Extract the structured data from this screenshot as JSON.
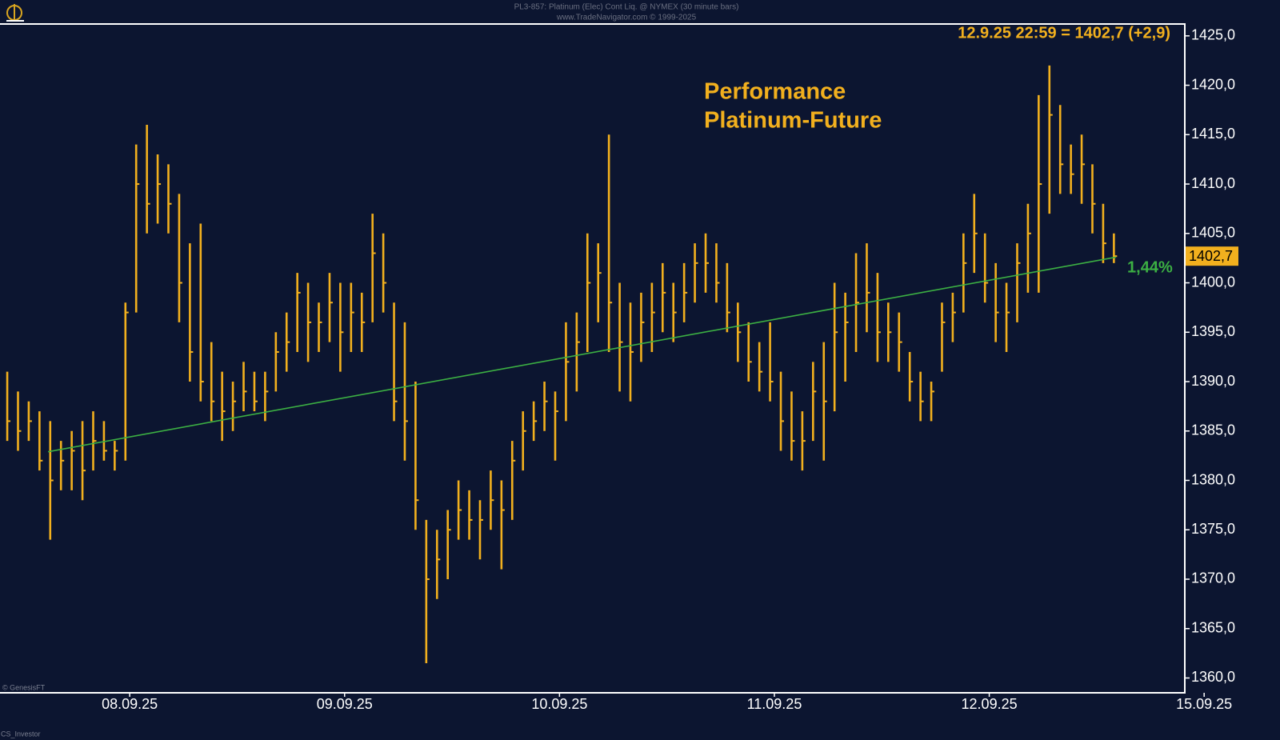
{
  "chart_data": {
    "type": "ohlc",
    "title": "PL3-857: Platinum (Elec) Cont Liq. @ NYMEX (30 minute bars)",
    "subtitle": "www.TradeNavigator.com © 1999-2025",
    "info": "12.9.25 22:59 = 1402,7 (+2,9)",
    "annotations": [
      "Performance",
      "Platinum-Future"
    ],
    "credits": [
      "© GenesisFT",
      "CS_Investor"
    ],
    "color": "#f2b01e",
    "x": [
      0.43,
      0.48,
      0.53,
      0.58,
      0.63,
      0.68,
      0.73,
      0.78,
      0.83,
      0.88,
      0.93,
      0.98,
      1.03,
      1.08,
      1.13,
      1.18,
      1.23,
      1.28,
      1.33,
      1.38,
      1.43,
      1.48,
      1.53,
      1.58,
      1.63,
      1.68,
      1.73,
      1.78,
      1.83,
      1.88,
      1.93,
      1.98,
      2.03,
      2.08,
      2.13,
      2.18,
      2.23,
      2.28,
      2.33,
      2.38,
      2.43,
      2.48,
      2.53,
      2.58,
      2.63,
      2.68,
      2.73,
      2.78,
      2.83,
      2.88,
      2.93,
      2.98,
      3.03,
      3.08,
      3.13,
      3.18,
      3.23,
      3.28,
      3.33,
      3.38,
      3.43,
      3.48,
      3.53,
      3.58,
      3.63,
      3.68,
      3.73,
      3.78,
      3.83,
      3.88,
      3.93,
      3.98,
      4.03,
      4.08,
      4.13,
      4.18,
      4.23,
      4.28,
      4.33,
      4.38,
      4.43,
      4.48,
      4.53,
      4.58,
      4.63,
      4.68,
      4.73,
      4.78,
      4.83,
      4.88,
      4.93,
      4.98,
      5.03,
      5.08,
      5.13,
      5.18,
      5.23,
      5.28,
      5.33,
      5.38,
      5.43,
      5.48,
      5.53,
      5.58
    ],
    "high": [
      1391,
      1389,
      1388,
      1387,
      1386,
      1384,
      1385,
      1386,
      1387,
      1386,
      1384,
      1398,
      1414,
      1416,
      1413,
      1412,
      1409,
      1404,
      1406,
      1394,
      1391,
      1390,
      1392,
      1391,
      1391,
      1395,
      1397,
      1401,
      1400,
      1398,
      1401,
      1400,
      1400,
      1399,
      1407,
      1405,
      1398,
      1396,
      1390,
      1376,
      1375,
      1377,
      1380,
      1379,
      1378,
      1381,
      1380,
      1384,
      1387,
      1388,
      1390,
      1389,
      1396,
      1397,
      1405,
      1404,
      1415,
      1400,
      1398,
      1399,
      1400,
      1402,
      1400,
      1402,
      1404,
      1405,
      1404,
      1402,
      1398,
      1396,
      1394,
      1396,
      1391,
      1389,
      1387,
      1392,
      1394,
      1400,
      1399,
      1403,
      1404,
      1401,
      1398,
      1397,
      1393,
      1391,
      1390,
      1398,
      1399,
      1405,
      1409,
      1405,
      1402,
      1400,
      1404,
      1408,
      1419,
      1422,
      1418,
      1414,
      1415,
      1412,
      1408,
      1405
    ],
    "low": [
      1384,
      1383,
      1384,
      1381,
      1374,
      1379,
      1379,
      1378,
      1381,
      1382,
      1381,
      1382,
      1397,
      1405,
      1406,
      1405,
      1396,
      1390,
      1388,
      1386,
      1384,
      1385,
      1387,
      1387,
      1386,
      1389,
      1391,
      1393,
      1392,
      1393,
      1394,
      1391,
      1393,
      1393,
      1396,
      1397,
      1386,
      1382,
      1375,
      1361.5,
      1368,
      1370,
      1374,
      1374,
      1372,
      1375,
      1371,
      1376,
      1381,
      1384,
      1385,
      1382,
      1386,
      1389,
      1393,
      1396,
      1393,
      1389,
      1388,
      1392,
      1393,
      1395,
      1394,
      1396,
      1398,
      1399,
      1398,
      1395,
      1392,
      1390,
      1389,
      1388,
      1383,
      1382,
      1381,
      1384,
      1382,
      1387,
      1390,
      1393,
      1395,
      1392,
      1392,
      1391,
      1388,
      1386,
      1386,
      1391,
      1394,
      1397,
      1401,
      1398,
      1394,
      1393,
      1396,
      1399,
      1399,
      1407,
      1409,
      1409,
      1408,
      1405,
      1402,
      1402
    ],
    "close": [
      1386,
      1385,
      1386,
      1382,
      1380,
      1382,
      1383,
      1381,
      1384,
      1383,
      1383,
      1397,
      1410,
      1408,
      1410,
      1408,
      1400,
      1393,
      1390,
      1388,
      1387,
      1388,
      1389,
      1388,
      1389,
      1393,
      1394,
      1399,
      1396,
      1396,
      1398,
      1395,
      1397,
      1396,
      1403,
      1400,
      1388,
      1386,
      1378,
      1370,
      1372,
      1375,
      1377,
      1376,
      1376,
      1378,
      1377,
      1382,
      1385,
      1386,
      1388,
      1387,
      1392,
      1394,
      1400,
      1401,
      1398,
      1394,
      1393,
      1396,
      1397,
      1399,
      1397,
      1399,
      1402,
      1402,
      1400,
      1397,
      1395,
      1392,
      1391,
      1390,
      1386,
      1384,
      1384,
      1389,
      1388,
      1395,
      1396,
      1398,
      1399,
      1395,
      1395,
      1394,
      1390,
      1388,
      1389,
      1396,
      1397,
      1402,
      1405,
      1400,
      1397,
      1397,
      1402,
      1405,
      1410,
      1417,
      1412,
      1411,
      1412,
      1408,
      1404,
      1402.7
    ],
    "xlim": [
      0.4,
      5.91
    ],
    "xticks": [
      {
        "value": 1,
        "label": "08.09.25"
      },
      {
        "value": 2,
        "label": "09.09.25"
      },
      {
        "value": 3,
        "label": "10.09.25"
      },
      {
        "value": 4,
        "label": "11.09.25"
      },
      {
        "value": 5,
        "label": "12.09.25"
      },
      {
        "value": 6,
        "label": "15.09.25"
      }
    ],
    "ylim": [
      1358.5,
      1426.2
    ],
    "yticks": [
      {
        "value": 1360,
        "label": "1360,0"
      },
      {
        "value": 1365,
        "label": "1365,0"
      },
      {
        "value": 1370,
        "label": "1370,0"
      },
      {
        "value": 1375,
        "label": "1375,0"
      },
      {
        "value": 1380,
        "label": "1380,0"
      },
      {
        "value": 1385,
        "label": "1385,0"
      },
      {
        "value": 1390,
        "label": "1390,0"
      },
      {
        "value": 1395,
        "label": "1395,0"
      },
      {
        "value": 1400,
        "label": "1400,0"
      },
      {
        "value": 1405,
        "label": "1405,0"
      },
      {
        "value": 1410,
        "label": "1410,0"
      },
      {
        "value": 1415,
        "label": "1415,0"
      },
      {
        "value": 1420,
        "label": "1420,0"
      },
      {
        "value": 1425,
        "label": "1425,0"
      }
    ],
    "trendline": {
      "x": [
        0.62,
        5.59
      ],
      "values": [
        1382.9,
        1402.6
      ],
      "color": "#3cb043",
      "label": "1,44%"
    },
    "last_price": {
      "value": 1402.7,
      "label": "1402,7"
    }
  }
}
